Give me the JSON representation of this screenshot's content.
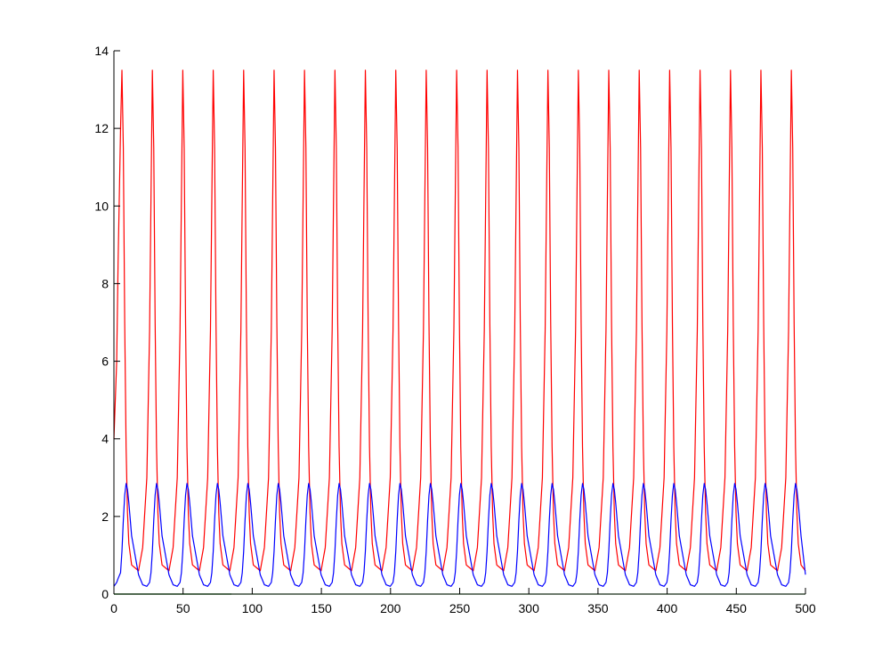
{
  "chart_data": {
    "type": "line",
    "xlim": [
      0,
      500
    ],
    "xticks": [
      0,
      50,
      100,
      150,
      200,
      250,
      300,
      350,
      400,
      450,
      500
    ],
    "ylim": [
      0,
      14
    ],
    "yticks": [
      0,
      2,
      4,
      6,
      8,
      10,
      12,
      14
    ],
    "grid": false,
    "x": [
      0,
      2,
      3,
      4.8,
      5.8,
      6.8,
      7.8,
      8.8,
      9.8,
      10.8,
      12.8,
      17.8,
      20.8,
      23.8,
      25.8,
      26.8,
      27.8,
      28.8,
      29.8,
      30.8,
      31.8,
      32.8,
      34.8,
      39.8,
      42.8,
      45.8,
      47.8,
      48.8,
      49.8,
      50.8,
      51.8,
      52.8,
      53.8,
      54.8,
      56.8,
      61.8,
      64.8,
      67.8,
      69.8,
      70.8,
      71.8,
      72.8,
      73.8,
      74.8,
      75.8,
      76.8,
      78.8,
      83.8,
      86.8,
      89.8,
      91.8,
      92.8,
      93.8,
      94.8,
      95.8,
      96.8,
      97.8,
      98.8,
      100.8,
      105.8,
      108.8,
      111.8,
      113.8,
      114.8,
      115.8,
      116.8,
      117.8,
      118.8,
      119.8,
      120.8,
      122.8,
      127.8,
      130.8,
      133.8,
      135.8,
      136.8,
      137.8,
      138.8,
      139.8,
      140.8,
      141.8,
      142.8,
      144.8,
      149.8,
      152.8,
      155.8,
      157.8,
      158.8,
      159.8,
      160.8,
      161.8,
      162.8,
      163.8,
      164.8,
      166.8,
      171.8,
      174.8,
      177.8,
      179.8,
      180.8,
      181.8,
      182.8,
      183.8,
      184.8,
      185.8,
      186.8,
      188.8,
      193.8,
      196.8,
      199.8,
      201.8,
      202.8,
      203.8,
      204.8,
      205.8,
      206.8,
      207.8,
      208.8,
      210.8,
      215.8,
      218.8,
      221.8,
      223.8,
      224.8,
      225.8,
      226.8,
      227.8,
      228.8,
      229.8,
      230.8,
      232.8,
      237.8,
      240.8,
      243.8,
      245.8,
      246.8,
      247.8,
      248.8,
      249.8,
      250.8,
      251.8,
      252.8,
      254.8,
      259.8,
      262.8,
      265.8,
      267.8,
      268.8,
      269.8,
      270.8,
      271.8,
      272.8,
      273.8,
      274.8,
      276.8,
      281.8,
      284.8,
      287.8,
      289.8,
      290.8,
      291.8,
      292.8,
      293.8,
      294.8,
      295.8,
      296.8,
      298.8,
      303.8,
      306.8,
      309.8,
      311.8,
      312.8,
      313.8,
      314.8,
      315.8,
      316.8,
      317.8,
      318.8,
      320.8,
      325.8,
      328.8,
      331.8,
      333.8,
      334.8,
      335.8,
      336.8,
      337.8,
      338.8,
      339.8,
      340.8,
      342.8,
      347.8,
      350.8,
      353.8,
      355.8,
      356.8,
      357.8,
      358.8,
      359.8,
      360.8,
      361.8,
      362.8,
      364.8,
      369.8,
      372.8,
      375.8,
      377.8,
      378.8,
      379.8,
      380.8,
      381.8,
      382.8,
      383.8,
      384.8,
      386.8,
      391.8,
      394.8,
      397.8,
      399.8,
      400.8,
      401.8,
      402.8,
      403.8,
      404.8,
      405.8,
      406.8,
      408.8,
      413.8,
      416.8,
      419.8,
      421.8,
      422.8,
      423.8,
      424.8,
      425.8,
      426.8,
      427.8,
      428.8,
      430.8,
      435.8,
      438.8,
      441.8,
      443.8,
      444.8,
      445.8,
      446.8,
      447.8,
      448.8,
      449.8,
      450.8,
      452.8,
      457.8,
      460.8,
      463.8,
      465.8,
      466.8,
      467.8,
      468.8,
      469.8,
      470.8,
      471.8,
      472.8,
      474.8,
      479.8,
      482.8,
      485.8,
      487.8,
      488.8,
      489.8,
      490.8,
      491.8,
      492.8,
      493.8,
      494.8,
      496.8,
      500
    ],
    "series": [
      {
        "color": "#ff0000",
        "values": [
          4.0,
          6.0,
          8.5,
          12.0,
          13.5,
          11.5,
          7.0,
          3.8,
          2.1,
          1.3,
          0.75,
          0.6,
          1.2,
          3.0,
          6.8,
          10.2,
          13.5,
          11.5,
          7.0,
          3.8,
          2.1,
          1.3,
          0.75,
          0.6,
          1.2,
          3.0,
          6.8,
          10.2,
          13.5,
          11.5,
          7.0,
          3.8,
          2.1,
          1.3,
          0.75,
          0.6,
          1.2,
          3.0,
          6.8,
          10.2,
          13.5,
          11.5,
          7.0,
          3.8,
          2.1,
          1.3,
          0.75,
          0.6,
          1.2,
          3.0,
          6.8,
          10.2,
          13.5,
          11.5,
          7.0,
          3.8,
          2.1,
          1.3,
          0.75,
          0.6,
          1.2,
          3.0,
          6.8,
          10.2,
          13.5,
          11.5,
          7.0,
          3.8,
          2.1,
          1.3,
          0.75,
          0.6,
          1.2,
          3.0,
          6.8,
          10.2,
          13.5,
          11.5,
          7.0,
          3.8,
          2.1,
          1.3,
          0.75,
          0.6,
          1.2,
          3.0,
          6.8,
          10.2,
          13.5,
          11.5,
          7.0,
          3.8,
          2.1,
          1.3,
          0.75,
          0.6,
          1.2,
          3.0,
          6.8,
          10.2,
          13.5,
          11.5,
          7.0,
          3.8,
          2.1,
          1.3,
          0.75,
          0.6,
          1.2,
          3.0,
          6.8,
          10.2,
          13.5,
          11.5,
          7.0,
          3.8,
          2.1,
          1.3,
          0.75,
          0.6,
          1.2,
          3.0,
          6.8,
          10.2,
          13.5,
          11.5,
          7.0,
          3.8,
          2.1,
          1.3,
          0.75,
          0.6,
          1.2,
          3.0,
          6.8,
          10.2,
          13.5,
          11.5,
          7.0,
          3.8,
          2.1,
          1.3,
          0.75,
          0.6,
          1.2,
          3.0,
          6.8,
          10.2,
          13.5,
          11.5,
          7.0,
          3.8,
          2.1,
          1.3,
          0.75,
          0.6,
          1.2,
          3.0,
          6.8,
          10.2,
          13.5,
          11.5,
          7.0,
          3.8,
          2.1,
          1.3,
          0.75,
          0.6,
          1.2,
          3.0,
          6.8,
          10.2,
          13.5,
          11.5,
          7.0,
          3.8,
          2.1,
          1.3,
          0.75,
          0.6,
          1.2,
          3.0,
          6.8,
          10.2,
          13.5,
          11.5,
          7.0,
          3.8,
          2.1,
          1.3,
          0.75,
          0.6,
          1.2,
          3.0,
          6.8,
          10.2,
          13.5,
          11.5,
          7.0,
          3.8,
          2.1,
          1.3,
          0.75,
          0.6,
          1.2,
          3.0,
          6.8,
          10.2,
          13.5,
          11.5,
          7.0,
          3.8,
          2.1,
          1.3,
          0.75,
          0.6,
          1.2,
          3.0,
          6.8,
          10.2,
          13.5,
          11.5,
          7.0,
          3.8,
          2.1,
          1.3,
          0.75,
          0.6,
          1.2,
          3.0,
          6.8,
          10.2,
          13.5,
          11.5,
          7.0,
          3.8,
          2.1,
          1.3,
          0.75,
          0.6,
          1.2,
          3.0,
          6.8,
          10.2,
          13.5,
          11.5,
          7.0,
          3.8,
          2.1,
          1.3,
          0.75,
          0.6,
          1.2,
          3.0,
          6.8,
          10.2,
          13.5,
          11.5,
          7.0,
          3.8,
          2.1,
          1.3,
          0.75,
          0.6,
          1.2,
          3.0,
          6.8,
          10.2,
          13.5,
          11.5,
          7.0,
          3.8,
          2.1,
          1.3,
          0.75,
          0.6
        ]
      },
      {
        "color": "#0000ff",
        "values": [
          0.2,
          0.3,
          0.4,
          0.55,
          1.1,
          1.9,
          2.55,
          2.85,
          2.7,
          2.35,
          1.5,
          0.5,
          0.24,
          0.2,
          0.3,
          0.55,
          1.1,
          1.9,
          2.55,
          2.85,
          2.7,
          2.35,
          1.5,
          0.5,
          0.24,
          0.2,
          0.3,
          0.55,
          1.1,
          1.9,
          2.55,
          2.85,
          2.7,
          2.35,
          1.5,
          0.5,
          0.24,
          0.2,
          0.3,
          0.55,
          1.1,
          1.9,
          2.55,
          2.85,
          2.7,
          2.35,
          1.5,
          0.5,
          0.24,
          0.2,
          0.3,
          0.55,
          1.1,
          1.9,
          2.55,
          2.85,
          2.7,
          2.35,
          1.5,
          0.5,
          0.24,
          0.2,
          0.3,
          0.55,
          1.1,
          1.9,
          2.55,
          2.85,
          2.7,
          2.35,
          1.5,
          0.5,
          0.24,
          0.2,
          0.3,
          0.55,
          1.1,
          1.9,
          2.55,
          2.85,
          2.7,
          2.35,
          1.5,
          0.5,
          0.24,
          0.2,
          0.3,
          0.55,
          1.1,
          1.9,
          2.55,
          2.85,
          2.7,
          2.35,
          1.5,
          0.5,
          0.24,
          0.2,
          0.3,
          0.55,
          1.1,
          1.9,
          2.55,
          2.85,
          2.7,
          2.35,
          1.5,
          0.5,
          0.24,
          0.2,
          0.3,
          0.55,
          1.1,
          1.9,
          2.55,
          2.85,
          2.7,
          2.35,
          1.5,
          0.5,
          0.24,
          0.2,
          0.3,
          0.55,
          1.1,
          1.9,
          2.55,
          2.85,
          2.7,
          2.35,
          1.5,
          0.5,
          0.24,
          0.2,
          0.3,
          0.55,
          1.1,
          1.9,
          2.55,
          2.85,
          2.7,
          2.35,
          1.5,
          0.5,
          0.24,
          0.2,
          0.3,
          0.55,
          1.1,
          1.9,
          2.55,
          2.85,
          2.7,
          2.35,
          1.5,
          0.5,
          0.24,
          0.2,
          0.3,
          0.55,
          1.1,
          1.9,
          2.55,
          2.85,
          2.7,
          2.35,
          1.5,
          0.5,
          0.24,
          0.2,
          0.3,
          0.55,
          1.1,
          1.9,
          2.55,
          2.85,
          2.7,
          2.35,
          1.5,
          0.5,
          0.24,
          0.2,
          0.3,
          0.55,
          1.1,
          1.9,
          2.55,
          2.85,
          2.7,
          2.35,
          1.5,
          0.5,
          0.24,
          0.2,
          0.3,
          0.55,
          1.1,
          1.9,
          2.55,
          2.85,
          2.7,
          2.35,
          1.5,
          0.5,
          0.24,
          0.2,
          0.3,
          0.55,
          1.1,
          1.9,
          2.55,
          2.85,
          2.7,
          2.35,
          1.5,
          0.5,
          0.24,
          0.2,
          0.3,
          0.55,
          1.1,
          1.9,
          2.55,
          2.85,
          2.7,
          2.35,
          1.5,
          0.5,
          0.24,
          0.2,
          0.3,
          0.55,
          1.1,
          1.9,
          2.55,
          2.85,
          2.7,
          2.35,
          1.5,
          0.5,
          0.24,
          0.2,
          0.3,
          0.55,
          1.1,
          1.9,
          2.55,
          2.85,
          2.7,
          2.35,
          1.5,
          0.5,
          0.24,
          0.2,
          0.3,
          0.55,
          1.1,
          1.9,
          2.55,
          2.85,
          2.7,
          2.35,
          1.5,
          0.5,
          0.24,
          0.2,
          0.3,
          0.55,
          1.1,
          1.9,
          2.55,
          2.85,
          2.7,
          2.35,
          1.5,
          0.5
        ]
      },
      {
        "color": "#5fd35f",
        "x": [
          0,
          500
        ],
        "values": [
          0,
          0
        ]
      },
      {
        "color": "#007a00",
        "x": [
          0,
          85
        ],
        "values": [
          0,
          0
        ]
      }
    ]
  }
}
